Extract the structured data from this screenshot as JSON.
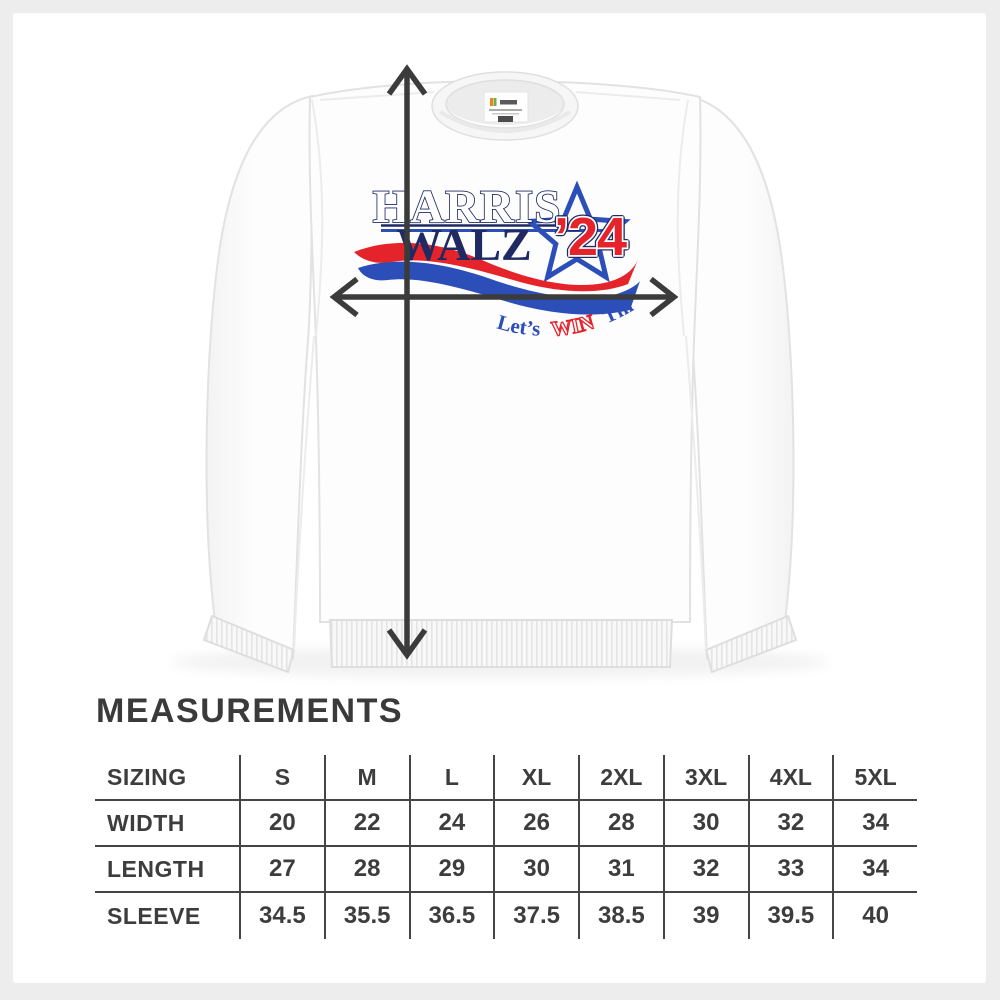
{
  "page": {
    "background": "#ededed",
    "panel": "#ffffff"
  },
  "design": {
    "title_top": "HARRIS",
    "title_bottom": "WALZ",
    "year": "’24",
    "tagline": {
      "word1": "Let’s",
      "word2": "WIN",
      "word3": "This!"
    },
    "colors": {
      "navy": "#1f2a63",
      "blue": "#2c4eb8",
      "red": "#e5232b",
      "white": "#ffffff"
    }
  },
  "annotations": {
    "arrow_color": "#3b3b3b"
  },
  "measurements": {
    "heading": "MEASUREMENTS",
    "table": {
      "header": [
        "SIZING",
        "S",
        "M",
        "L",
        "XL",
        "2XL",
        "3XL",
        "4XL",
        "5XL"
      ],
      "rows": [
        {
          "label": "WIDTH",
          "values": [
            "20",
            "22",
            "24",
            "26",
            "28",
            "30",
            "32",
            "34"
          ]
        },
        {
          "label": "LENGTH",
          "values": [
            "27",
            "28",
            "29",
            "30",
            "31",
            "32",
            "33",
            "34"
          ]
        },
        {
          "label": "SLEEVE",
          "values": [
            "34.5",
            "35.5",
            "36.5",
            "37.5",
            "38.5",
            "39",
            "39.5",
            "40"
          ]
        }
      ]
    }
  }
}
